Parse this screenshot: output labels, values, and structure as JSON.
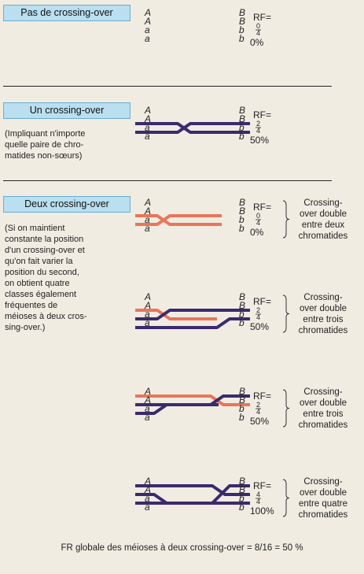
{
  "colors": {
    "orange": "#e8765a",
    "purple": "#3b2a6e",
    "box": "#b9dff0",
    "box_border": "#6aaed0",
    "background": "#f1ece2"
  },
  "labels": {
    "A": "A",
    "B": "B",
    "a": "a",
    "b": "b"
  },
  "sections": [
    {
      "title": "Pas de crossing-over",
      "note": [],
      "diagrams": [
        {
          "rf": "RF=",
          "num": "0",
          "den": "4",
          "value": "0%",
          "description": []
        }
      ]
    },
    {
      "title": "Un crossing-over",
      "note": [
        "(Impliquant n'importe",
        "quelle paire de chro-",
        "matides non-sœurs)"
      ],
      "diagrams": [
        {
          "rf": "RF=",
          "num": "2",
          "den": "4",
          "value": "50%",
          "description": []
        }
      ]
    },
    {
      "title": "Deux crossing-over",
      "note": [
        "(Si on maintient",
        "constante la position",
        "d'un crossing-over et",
        "qu'on fait varier la",
        "position du second,",
        "on obtient quatre",
        "classes également",
        "fréquentes de",
        "méioses à deux cros-",
        "sing-over.)"
      ],
      "diagrams": [
        {
          "rf": "RF=",
          "num": "0",
          "den": "4",
          "value": "0%",
          "description": [
            "Crossing-",
            "over double",
            "entre deux",
            "chromatides"
          ]
        },
        {
          "rf": "RF=",
          "num": "2",
          "den": "4",
          "value": "50%",
          "description": [
            "Crossing-",
            "over double",
            "entre trois",
            "chromatides"
          ]
        },
        {
          "rf": "RF=",
          "num": "2",
          "den": "4",
          "value": "50%",
          "description": [
            "Crossing-",
            "over double",
            "entre trois",
            "chromatides"
          ]
        },
        {
          "rf": "RF=",
          "num": "4",
          "den": "4",
          "value": "100%",
          "description": [
            "Crossing-",
            "over double",
            "entre quatre",
            "chromatides"
          ]
        }
      ]
    }
  ],
  "footer": "FR globale des méioses à deux crossing-over = 8/16 = 50 %"
}
